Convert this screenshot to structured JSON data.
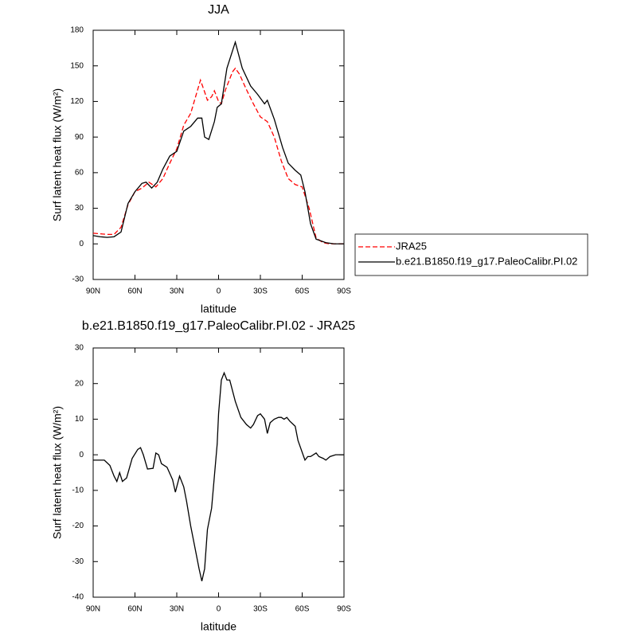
{
  "chart_data": [
    {
      "type": "line",
      "title": "JJA",
      "xlabel": "latitude",
      "ylabel": "Surf latent heat flux (W/m²)",
      "xlim": [
        90,
        -90
      ],
      "ylim": [
        -30,
        180
      ],
      "xticks": [
        {
          "value": 90,
          "label": "90N"
        },
        {
          "value": 60,
          "label": "60N"
        },
        {
          "value": 30,
          "label": "30N"
        },
        0,
        {
          "value": -30,
          "label": "30S"
        },
        {
          "value": -60,
          "label": "60S"
        },
        {
          "value": -90,
          "label": "90S"
        }
      ],
      "yticks": [
        -30,
        0,
        30,
        60,
        90,
        120,
        150,
        180
      ],
      "series": [
        {
          "name": "JRA25",
          "color": "#ff0000",
          "style": "dashed",
          "x": [
            90,
            80,
            75,
            70,
            65,
            60,
            55,
            50,
            45,
            40,
            35,
            30,
            25,
            20,
            15,
            13,
            10,
            8,
            5,
            3,
            0,
            -2,
            -5,
            -10,
            -12,
            -15,
            -20,
            -25,
            -30,
            -35,
            -40,
            -45,
            -50,
            -55,
            -60,
            -65,
            -70,
            -75,
            -80,
            -90
          ],
          "values": [
            9,
            8,
            8,
            14,
            33,
            44,
            47,
            52,
            48,
            55,
            68,
            80,
            100,
            110,
            130,
            138,
            128,
            121,
            124,
            129,
            120,
            118,
            130,
            145,
            148,
            143,
            130,
            118,
            107,
            103,
            90,
            70,
            55,
            50,
            48,
            30,
            5,
            1,
            0,
            0
          ]
        },
        {
          "name": "b.e21.B1850.f19_g17.PaleoCalibr.PI.02",
          "color": "#000000",
          "style": "solid",
          "x": [
            90,
            85,
            80,
            75,
            70,
            65,
            60,
            55,
            52,
            48,
            44,
            40,
            35,
            30,
            25,
            20,
            15,
            12,
            10,
            7,
            3,
            1,
            -2,
            -6,
            -12,
            -17,
            -23,
            -28,
            -33,
            -35,
            -40,
            -46,
            -50,
            -55,
            -59,
            -62,
            -66,
            -70,
            -77,
            -83,
            -90
          ],
          "values": [
            7,
            6,
            5.5,
            6,
            10,
            34,
            44,
            51,
            52,
            47,
            52,
            63,
            74,
            78,
            95,
            99,
            106,
            106,
            90,
            88,
            103,
            115,
            118,
            148,
            170,
            148,
            133,
            126,
            118,
            121,
            105,
            81,
            68,
            62,
            58,
            44,
            17,
            4,
            1,
            0,
            0
          ]
        }
      ]
    },
    {
      "type": "line",
      "title": "b.e21.B1850.f19_g17.PaleoCalibr.PI.02 - JRA25",
      "xlabel": "latitude",
      "ylabel": "Surf latent heat flux (W/m²)",
      "xlim": [
        90,
        -90
      ],
      "ylim": [
        -40,
        30
      ],
      "xticks": [
        {
          "value": 90,
          "label": "90N"
        },
        {
          "value": 60,
          "label": "60N"
        },
        {
          "value": 30,
          "label": "30N"
        },
        0,
        {
          "value": -30,
          "label": "30S"
        },
        {
          "value": -60,
          "label": "60S"
        },
        {
          "value": -90,
          "label": "90S"
        }
      ],
      "yticks": [
        -40,
        -30,
        -20,
        -10,
        0,
        10,
        20,
        30
      ],
      "series": [
        {
          "color": "#000000",
          "style": "solid",
          "x": [
            90,
            82,
            78,
            75,
            73,
            71,
            69,
            66,
            62,
            58,
            56,
            54,
            51,
            47,
            45,
            43,
            41,
            37,
            33,
            31,
            28,
            25,
            23,
            20,
            17,
            14,
            12,
            10,
            8,
            5,
            3,
            1,
            0,
            -2,
            -4,
            -6,
            -8,
            -12,
            -16,
            -20,
            -23,
            -25,
            -28,
            -30,
            -33,
            -35,
            -37,
            -40,
            -43,
            -45,
            -47,
            -49,
            -51,
            -55,
            -57,
            -62,
            -64,
            -66,
            -70,
            -72,
            -75,
            -77,
            -80,
            -84,
            -90
          ],
          "values": [
            -1.5,
            -1.5,
            -3,
            -6,
            -7.5,
            -5,
            -7.5,
            -6.5,
            -1,
            1.5,
            2,
            0,
            -4,
            -3.8,
            0.5,
            0,
            -2.5,
            -3.5,
            -7,
            -10.5,
            -6,
            -9,
            -13,
            -20,
            -26,
            -32,
            -35.5,
            -32,
            -21,
            -15,
            -6,
            3,
            11.5,
            21,
            23,
            21,
            21,
            15,
            10.5,
            8.5,
            7.5,
            8.5,
            11,
            11.5,
            10,
            6,
            9,
            10,
            10.5,
            10.5,
            10,
            10.5,
            9.5,
            8,
            4,
            -1.5,
            -0.5,
            -0.5,
            0.5,
            -0.5,
            -1,
            -1.5,
            -0.5,
            0,
            0
          ]
        }
      ]
    }
  ]
}
